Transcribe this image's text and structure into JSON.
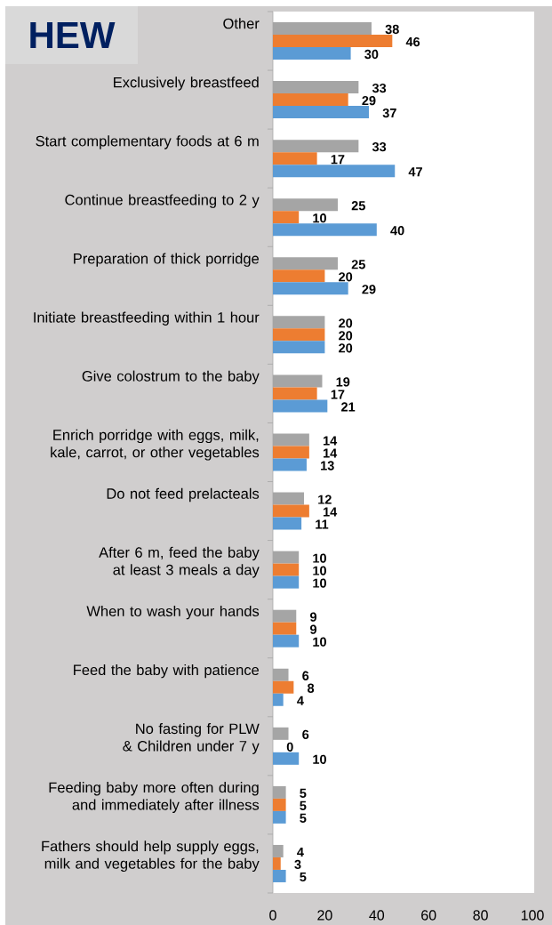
{
  "chart_data": {
    "type": "bar",
    "orientation": "horizontal",
    "title": "HEW",
    "categories": [
      "Other",
      "Exclusively breastfeed",
      "Start complementary foods at 6 m",
      "Continue breastfeeding to 2 y",
      "Preparation of thick porridge",
      "Initiate breastfeeding within 1 hour",
      "Give colostrum to the baby",
      "Enrich porridge with eggs, milk, kale, carrot, or other vegetables",
      "Do not feed prelacteals",
      "After 6 m, feed the baby at least 3 meals a day",
      "When to wash your hands",
      "Feed the baby with patience",
      "No fasting for PLW & Children under 7 y",
      "Feeding baby more often during and immediately after illness",
      "Fathers should help supply eggs, milk and vegetables for the baby"
    ],
    "series": [
      {
        "color": "#a5a5a5",
        "values": [
          38,
          33,
          33,
          25,
          25,
          20,
          19,
          14,
          12,
          10,
          9,
          6,
          6,
          5,
          4
        ]
      },
      {
        "color": "#ed7d31",
        "values": [
          46,
          29,
          17,
          10,
          20,
          20,
          17,
          14,
          14,
          10,
          9,
          8,
          0,
          5,
          3
        ]
      },
      {
        "color": "#5b9bd5",
        "values": [
          30,
          37,
          47,
          40,
          29,
          20,
          21,
          13,
          11,
          10,
          10,
          4,
          10,
          5,
          5
        ]
      }
    ],
    "xlim": [
      0,
      100
    ],
    "xticks": [
      0,
      20,
      40,
      60,
      80,
      100
    ],
    "data_labels": true
  }
}
